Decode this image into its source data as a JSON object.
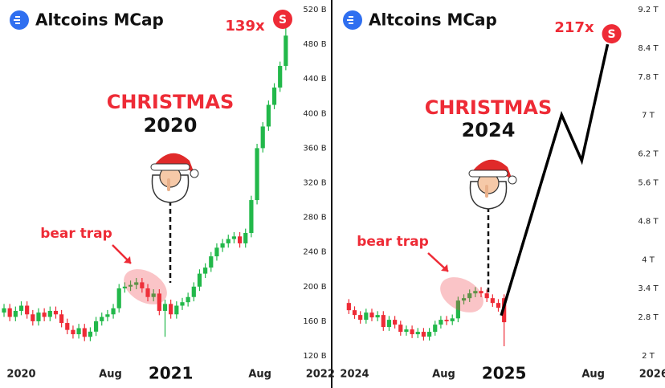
{
  "chart_data": [
    {
      "type": "candlestick",
      "title": "Altcoins MCap",
      "multiplier": "139x",
      "heading": "CHRISTMAS",
      "year": "2020",
      "note": "bear trap",
      "x": [
        -6,
        -4,
        -2,
        0,
        2,
        4,
        6,
        8,
        10,
        12,
        14,
        16,
        18,
        20,
        22,
        24,
        26,
        28,
        30,
        32,
        34,
        36,
        38,
        40,
        42,
        44,
        46,
        48,
        50,
        52,
        54,
        56,
        58,
        60,
        62,
        64,
        66,
        68,
        70,
        72,
        74,
        76,
        78,
        80,
        82,
        84,
        86,
        88,
        90,
        92
      ],
      "open": [
        170,
        175,
        165,
        172,
        178,
        168,
        160,
        170,
        165,
        172,
        168,
        158,
        150,
        145,
        152,
        142,
        148,
        160,
        165,
        168,
        175,
        198,
        200,
        202,
        205,
        198,
        188,
        192,
        172,
        180,
        168,
        178,
        182,
        188,
        200,
        215,
        222,
        235,
        245,
        250,
        255,
        258,
        250,
        262,
        300,
        360,
        385,
        410,
        430,
        455
      ],
      "high": [
        180,
        180,
        177,
        183,
        183,
        173,
        175,
        175,
        177,
        177,
        173,
        163,
        155,
        157,
        157,
        153,
        165,
        170,
        173,
        180,
        203,
        205,
        207,
        210,
        210,
        203,
        197,
        197,
        185,
        185,
        183,
        187,
        193,
        205,
        220,
        227,
        240,
        250,
        255,
        260,
        263,
        263,
        267,
        305,
        365,
        390,
        415,
        435,
        460,
        500
      ],
      "low": [
        165,
        160,
        160,
        167,
        163,
        155,
        155,
        160,
        160,
        163,
        153,
        145,
        140,
        140,
        137,
        137,
        143,
        155,
        160,
        163,
        170,
        193,
        195,
        197,
        193,
        183,
        183,
        167,
        142,
        163,
        163,
        173,
        177,
        183,
        195,
        210,
        217,
        230,
        240,
        245,
        250,
        245,
        245,
        257,
        295,
        355,
        380,
        405,
        425,
        450
      ],
      "close": [
        175,
        165,
        172,
        178,
        168,
        160,
        170,
        165,
        172,
        168,
        158,
        150,
        145,
        152,
        142,
        148,
        160,
        165,
        168,
        175,
        198,
        200,
        202,
        205,
        198,
        188,
        192,
        172,
        180,
        168,
        178,
        182,
        188,
        200,
        215,
        222,
        235,
        245,
        250,
        255,
        258,
        250,
        262,
        300,
        360,
        385,
        410,
        430,
        455,
        490
      ],
      "up_color": "#22b84a",
      "down_color": "#ee2b36",
      "xlim": [
        -7,
        97
      ],
      "xticks": [
        {
          "value": 0,
          "label": "2020"
        },
        {
          "value": 31,
          "label": "Aug"
        },
        {
          "value": 52,
          "label": "2021"
        },
        {
          "value": 83,
          "label": "Aug"
        },
        {
          "value": 104,
          "label": "2022"
        }
      ],
      "ylim": [
        120,
        520
      ],
      "yticks": [
        {
          "value": 120,
          "label": "120 B"
        },
        {
          "value": 160,
          "label": "160 B"
        },
        {
          "value": 200,
          "label": "200 B"
        },
        {
          "value": 240,
          "label": "240 B"
        },
        {
          "value": 280,
          "label": "280 B"
        },
        {
          "value": 320,
          "label": "320 B"
        },
        {
          "value": 360,
          "label": "360 B"
        },
        {
          "value": 400,
          "label": "400 B"
        },
        {
          "value": 440,
          "label": "440 B"
        },
        {
          "value": 480,
          "label": "480 B"
        },
        {
          "value": 520,
          "label": "520 B"
        }
      ]
    },
    {
      "type": "candlestick",
      "title": "Altcoins MCap",
      "multiplier": "217x",
      "heading": "CHRISTMAS",
      "year": "2024",
      "note": "bear trap",
      "x": [
        -2,
        0,
        2,
        4,
        6,
        8,
        10,
        12,
        14,
        16,
        18,
        20,
        22,
        24,
        26,
        28,
        30,
        32,
        34,
        36,
        38,
        40,
        42,
        44,
        46,
        48,
        50,
        52
      ],
      "open": [
        3.1,
        2.95,
        2.85,
        2.75,
        2.9,
        2.8,
        2.85,
        2.6,
        2.75,
        2.65,
        2.5,
        2.55,
        2.45,
        2.5,
        2.4,
        2.5,
        2.65,
        2.75,
        2.72,
        2.78,
        3.15,
        3.2,
        3.3,
        3.35,
        3.3,
        3.2,
        3.1,
        3.2
      ],
      "high": [
        3.18,
        3.03,
        2.93,
        2.98,
        2.98,
        2.93,
        2.93,
        2.83,
        2.83,
        2.73,
        2.63,
        2.63,
        2.58,
        2.58,
        2.58,
        2.73,
        2.83,
        2.83,
        2.86,
        3.23,
        3.28,
        3.38,
        3.43,
        3.43,
        3.38,
        3.28,
        3.18,
        3.28
      ],
      "low": [
        2.87,
        2.77,
        2.67,
        2.67,
        2.72,
        2.72,
        2.52,
        2.52,
        2.57,
        2.42,
        2.42,
        2.37,
        2.37,
        2.32,
        2.32,
        2.42,
        2.57,
        2.64,
        2.64,
        2.7,
        3.07,
        3.12,
        3.22,
        3.22,
        3.12,
        3.02,
        2.92,
        2.2
      ],
      "close": [
        2.95,
        2.85,
        2.75,
        2.9,
        2.8,
        2.85,
        2.6,
        2.75,
        2.65,
        2.5,
        2.55,
        2.45,
        2.5,
        2.4,
        2.5,
        2.65,
        2.75,
        2.72,
        2.78,
        3.15,
        3.2,
        3.3,
        3.35,
        3.3,
        3.2,
        3.1,
        3.0,
        2.7
      ],
      "up_color": "#22b84a",
      "down_color": "#ee2b36",
      "projection": {
        "x": [
          51,
          72,
          79,
          88
        ],
        "values": [
          2.84,
          7.01,
          6.06,
          8.48
        ],
        "color": "#000000"
      },
      "xlim": [
        -7,
        97
      ],
      "xticks": [
        {
          "value": 0,
          "label": "2024"
        },
        {
          "value": 31,
          "label": "Aug"
        },
        {
          "value": 52,
          "label": "2025"
        },
        {
          "value": 83,
          "label": "Aug"
        },
        {
          "value": 104,
          "label": "2026"
        }
      ],
      "ylim": [
        2,
        9.2
      ],
      "yticks": [
        {
          "value": 2,
          "label": "2 T"
        },
        {
          "value": 2.8,
          "label": "2.8 T"
        },
        {
          "value": 3.4,
          "label": "3.4 T"
        },
        {
          "value": 4,
          "label": "4 T"
        },
        {
          "value": 4.8,
          "label": "4.8 T"
        },
        {
          "value": 5.6,
          "label": "5.6 T"
        },
        {
          "value": 6.2,
          "label": "6.2 T"
        },
        {
          "value": 7,
          "label": "7 T"
        },
        {
          "value": 7.8,
          "label": "7.8 T"
        },
        {
          "value": 8.4,
          "label": "8.4 T"
        },
        {
          "value": 9.2,
          "label": "9.2 T"
        }
      ]
    }
  ]
}
